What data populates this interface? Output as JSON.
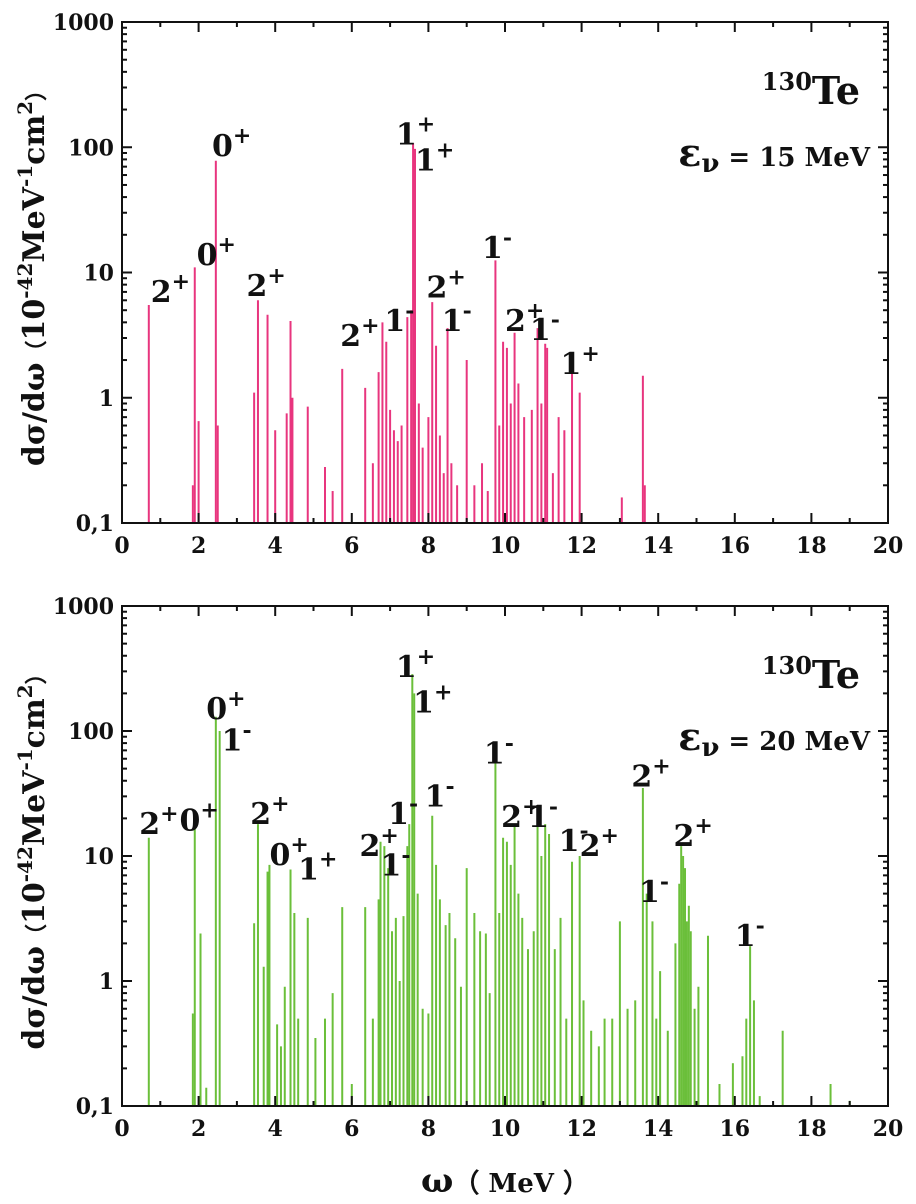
{
  "chart_data": [
    {
      "type": "bar",
      "nucleus": {
        "mass": "130",
        "symbol": "Te"
      },
      "energy": {
        "symbol": "ε",
        "sub": "ν",
        "text": " = 15 MeV"
      },
      "ylabel": {
        "main": "dσ/dω",
        "open": "（",
        "ten": "10",
        "exp1": "-42",
        "mev": "MeV",
        "exp2": "-1",
        "cm": "cm",
        "exp3": "2",
        "close": "）"
      },
      "xlabel": "",
      "xlim": [
        0,
        20
      ],
      "ylim": [
        0.1,
        1000
      ],
      "yscale": "log",
      "color": "#e8357e",
      "x_ticks": [
        "0",
        "2",
        "4",
        "6",
        "8",
        "10",
        "12",
        "14",
        "16",
        "18",
        "20"
      ],
      "y_ticks": [
        "0,1",
        "1",
        "10",
        "100",
        "1000"
      ],
      "lines": [
        {
          "x": 0.7,
          "y": 5.5
        },
        {
          "x": 1.85,
          "y": 0.2
        },
        {
          "x": 1.9,
          "y": 11
        },
        {
          "x": 2.0,
          "y": 0.65
        },
        {
          "x": 2.45,
          "y": 78
        },
        {
          "x": 2.5,
          "y": 0.6
        },
        {
          "x": 3.45,
          "y": 1.1
        },
        {
          "x": 3.55,
          "y": 6
        },
        {
          "x": 3.8,
          "y": 4.6
        },
        {
          "x": 4.0,
          "y": 0.55
        },
        {
          "x": 4.3,
          "y": 0.75
        },
        {
          "x": 4.4,
          "y": 4.1
        },
        {
          "x": 4.45,
          "y": 1.0
        },
        {
          "x": 4.85,
          "y": 0.85
        },
        {
          "x": 5.3,
          "y": 0.28
        },
        {
          "x": 5.5,
          "y": 0.18
        },
        {
          "x": 5.75,
          "y": 1.7
        },
        {
          "x": 6.35,
          "y": 1.2
        },
        {
          "x": 6.55,
          "y": 0.3
        },
        {
          "x": 6.7,
          "y": 1.6
        },
        {
          "x": 6.8,
          "y": 4.0
        },
        {
          "x": 6.9,
          "y": 2.8
        },
        {
          "x": 7.0,
          "y": 0.8
        },
        {
          "x": 7.1,
          "y": 0.55
        },
        {
          "x": 7.2,
          "y": 0.45
        },
        {
          "x": 7.3,
          "y": 0.6
        },
        {
          "x": 7.45,
          "y": 4.4
        },
        {
          "x": 7.55,
          "y": 5.0
        },
        {
          "x": 7.6,
          "y": 108
        },
        {
          "x": 7.65,
          "y": 97
        },
        {
          "x": 7.75,
          "y": 0.9
        },
        {
          "x": 7.85,
          "y": 0.4
        },
        {
          "x": 8.0,
          "y": 0.7
        },
        {
          "x": 8.1,
          "y": 5.8
        },
        {
          "x": 8.2,
          "y": 2.6
        },
        {
          "x": 8.3,
          "y": 0.5
        },
        {
          "x": 8.4,
          "y": 0.25
        },
        {
          "x": 8.5,
          "y": 3.6
        },
        {
          "x": 8.6,
          "y": 0.3
        },
        {
          "x": 8.75,
          "y": 0.2
        },
        {
          "x": 9.0,
          "y": 2.0
        },
        {
          "x": 9.2,
          "y": 0.2
        },
        {
          "x": 9.4,
          "y": 0.3
        },
        {
          "x": 9.55,
          "y": 0.18
        },
        {
          "x": 9.75,
          "y": 12.5
        },
        {
          "x": 9.85,
          "y": 0.6
        },
        {
          "x": 9.95,
          "y": 2.8
        },
        {
          "x": 10.05,
          "y": 2.5
        },
        {
          "x": 10.15,
          "y": 0.9
        },
        {
          "x": 10.25,
          "y": 3.3
        },
        {
          "x": 10.35,
          "y": 1.3
        },
        {
          "x": 10.5,
          "y": 0.7
        },
        {
          "x": 10.7,
          "y": 0.8
        },
        {
          "x": 10.85,
          "y": 3.6
        },
        {
          "x": 10.95,
          "y": 0.9
        },
        {
          "x": 11.05,
          "y": 2.7
        },
        {
          "x": 11.1,
          "y": 2.5
        },
        {
          "x": 11.25,
          "y": 0.25
        },
        {
          "x": 11.4,
          "y": 0.7
        },
        {
          "x": 11.55,
          "y": 0.55
        },
        {
          "x": 11.75,
          "y": 1.7
        },
        {
          "x": 11.95,
          "y": 1.1
        },
        {
          "x": 13.05,
          "y": 0.16
        },
        {
          "x": 13.6,
          "y": 1.5
        },
        {
          "x": 13.65,
          "y": 0.2
        }
      ],
      "labels": [
        {
          "x": 0.75,
          "y": 5.8,
          "state": "2",
          "parity": "+"
        },
        {
          "x": 1.95,
          "y": 11.5,
          "state": "0",
          "parity": "+"
        },
        {
          "x": 2.35,
          "y": 85,
          "state": "0",
          "parity": "+"
        },
        {
          "x": 3.25,
          "y": 6.5,
          "state": "2",
          "parity": "+"
        },
        {
          "x": 7.15,
          "y": 105,
          "state": "1",
          "parity": "+"
        },
        {
          "x": 7.65,
          "y": 65,
          "state": "1",
          "parity": "+"
        },
        {
          "x": 5.7,
          "y": 2.6,
          "state": "2",
          "parity": "+"
        },
        {
          "x": 6.85,
          "y": 3.4,
          "state": "1",
          "parity": "-"
        },
        {
          "x": 7.95,
          "y": 6.3,
          "state": "2",
          "parity": "+"
        },
        {
          "x": 8.35,
          "y": 3.4,
          "state": "1",
          "parity": "-"
        },
        {
          "x": 9.4,
          "y": 13,
          "state": "1",
          "parity": "-"
        },
        {
          "x": 10.0,
          "y": 3.4,
          "state": "2",
          "parity": "+"
        },
        {
          "x": 10.65,
          "y": 2.9,
          "state": "1",
          "parity": "-"
        },
        {
          "x": 11.45,
          "y": 1.55,
          "state": "1",
          "parity": "+"
        }
      ]
    },
    {
      "type": "bar",
      "nucleus": {
        "mass": "130",
        "symbol": "Te"
      },
      "energy": {
        "symbol": "ε",
        "sub": "ν",
        "text": " = 20 MeV"
      },
      "ylabel": {
        "main": "dσ/dω",
        "open": "（",
        "ten": "10",
        "exp1": "-42",
        "mev": "MeV",
        "exp2": "-1",
        "cm": "cm",
        "exp3": "2",
        "close": "）"
      },
      "xlabel": {
        "main": "ω",
        "unit": "（ MeV ）"
      },
      "xlim": [
        0,
        20
      ],
      "ylim": [
        0.1,
        1000
      ],
      "yscale": "log",
      "color": "#6bbf3a",
      "x_ticks": [
        "0",
        "2",
        "4",
        "6",
        "8",
        "10",
        "12",
        "14",
        "16",
        "18",
        "20"
      ],
      "y_ticks": [
        "0,1",
        "1",
        "10",
        "100",
        "1000"
      ],
      "lines": [
        {
          "x": 0.7,
          "y": 14
        },
        {
          "x": 1.85,
          "y": 0.55
        },
        {
          "x": 1.9,
          "y": 18
        },
        {
          "x": 2.05,
          "y": 2.4
        },
        {
          "x": 2.2,
          "y": 0.14
        },
        {
          "x": 2.45,
          "y": 130
        },
        {
          "x": 2.55,
          "y": 100
        },
        {
          "x": 3.45,
          "y": 2.9
        },
        {
          "x": 3.55,
          "y": 18
        },
        {
          "x": 3.7,
          "y": 1.3
        },
        {
          "x": 3.8,
          "y": 7.5
        },
        {
          "x": 3.85,
          "y": 8.5
        },
        {
          "x": 4.05,
          "y": 0.45
        },
        {
          "x": 4.15,
          "y": 0.3
        },
        {
          "x": 4.25,
          "y": 0.9
        },
        {
          "x": 4.4,
          "y": 7.8
        },
        {
          "x": 4.5,
          "y": 3.5
        },
        {
          "x": 4.6,
          "y": 0.5
        },
        {
          "x": 4.85,
          "y": 3.2
        },
        {
          "x": 5.05,
          "y": 0.35
        },
        {
          "x": 5.3,
          "y": 0.5
        },
        {
          "x": 5.5,
          "y": 0.8
        },
        {
          "x": 5.75,
          "y": 3.9
        },
        {
          "x": 6.0,
          "y": 0.15
        },
        {
          "x": 6.35,
          "y": 3.9
        },
        {
          "x": 6.55,
          "y": 0.5
        },
        {
          "x": 6.7,
          "y": 4.5
        },
        {
          "x": 6.75,
          "y": 13
        },
        {
          "x": 6.85,
          "y": 12
        },
        {
          "x": 6.95,
          "y": 8
        },
        {
          "x": 7.05,
          "y": 2.5
        },
        {
          "x": 7.15,
          "y": 3.2
        },
        {
          "x": 7.25,
          "y": 1.0
        },
        {
          "x": 7.35,
          "y": 3.3
        },
        {
          "x": 7.45,
          "y": 12
        },
        {
          "x": 7.5,
          "y": 18
        },
        {
          "x": 7.58,
          "y": 285
        },
        {
          "x": 7.63,
          "y": 200
        },
        {
          "x": 7.72,
          "y": 5
        },
        {
          "x": 7.85,
          "y": 0.6
        },
        {
          "x": 8.0,
          "y": 0.55
        },
        {
          "x": 8.1,
          "y": 21
        },
        {
          "x": 8.2,
          "y": 8.5
        },
        {
          "x": 8.3,
          "y": 4.5
        },
        {
          "x": 8.45,
          "y": 2.8
        },
        {
          "x": 8.55,
          "y": 3.5
        },
        {
          "x": 8.7,
          "y": 2.2
        },
        {
          "x": 8.85,
          "y": 0.9
        },
        {
          "x": 9.0,
          "y": 8
        },
        {
          "x": 9.2,
          "y": 3.5
        },
        {
          "x": 9.35,
          "y": 2.5
        },
        {
          "x": 9.5,
          "y": 2.4
        },
        {
          "x": 9.6,
          "y": 0.8
        },
        {
          "x": 9.75,
          "y": 55
        },
        {
          "x": 9.85,
          "y": 3.5
        },
        {
          "x": 9.95,
          "y": 14
        },
        {
          "x": 10.05,
          "y": 13
        },
        {
          "x": 10.15,
          "y": 8.5
        },
        {
          "x": 10.25,
          "y": 18
        },
        {
          "x": 10.35,
          "y": 5
        },
        {
          "x": 10.45,
          "y": 3.2
        },
        {
          "x": 10.6,
          "y": 1.8
        },
        {
          "x": 10.75,
          "y": 2.5
        },
        {
          "x": 10.85,
          "y": 19
        },
        {
          "x": 10.95,
          "y": 10
        },
        {
          "x": 11.05,
          "y": 18
        },
        {
          "x": 11.15,
          "y": 15
        },
        {
          "x": 11.3,
          "y": 1.8
        },
        {
          "x": 11.45,
          "y": 3.2
        },
        {
          "x": 11.6,
          "y": 0.5
        },
        {
          "x": 11.75,
          "y": 9
        },
        {
          "x": 11.95,
          "y": 10
        },
        {
          "x": 12.05,
          "y": 0.7
        },
        {
          "x": 12.25,
          "y": 0.4
        },
        {
          "x": 12.45,
          "y": 0.3
        },
        {
          "x": 12.6,
          "y": 0.5
        },
        {
          "x": 12.8,
          "y": 0.5
        },
        {
          "x": 13.0,
          "y": 3.0
        },
        {
          "x": 13.2,
          "y": 0.6
        },
        {
          "x": 13.4,
          "y": 0.7
        },
        {
          "x": 13.6,
          "y": 35
        },
        {
          "x": 13.7,
          "y": 5
        },
        {
          "x": 13.85,
          "y": 3.0
        },
        {
          "x": 13.95,
          "y": 0.5
        },
        {
          "x": 14.05,
          "y": 1.2
        },
        {
          "x": 14.25,
          "y": 0.4
        },
        {
          "x": 14.45,
          "y": 2.0
        },
        {
          "x": 14.55,
          "y": 6
        },
        {
          "x": 14.6,
          "y": 12
        },
        {
          "x": 14.65,
          "y": 10
        },
        {
          "x": 14.7,
          "y": 8
        },
        {
          "x": 14.75,
          "y": 3
        },
        {
          "x": 14.8,
          "y": 4
        },
        {
          "x": 14.85,
          "y": 2.5
        },
        {
          "x": 14.95,
          "y": 0.6
        },
        {
          "x": 15.05,
          "y": 0.9
        },
        {
          "x": 15.3,
          "y": 2.3
        },
        {
          "x": 15.6,
          "y": 0.15
        },
        {
          "x": 15.95,
          "y": 0.22
        },
        {
          "x": 16.2,
          "y": 0.25
        },
        {
          "x": 16.3,
          "y": 0.5
        },
        {
          "x": 16.4,
          "y": 1.9
        },
        {
          "x": 16.5,
          "y": 0.7
        },
        {
          "x": 16.65,
          "y": 0.12
        },
        {
          "x": 17.25,
          "y": 0.4
        },
        {
          "x": 18.5,
          "y": 0.15
        },
        {
          "x": 19.0,
          "y": 0.11
        }
      ],
      "labels": [
        {
          "x": 0.45,
          "y": 15,
          "state": "2",
          "parity": "+"
        },
        {
          "x": 1.5,
          "y": 16,
          "state": "0",
          "parity": "+"
        },
        {
          "x": 2.2,
          "y": 125,
          "state": "0",
          "parity": "+"
        },
        {
          "x": 2.6,
          "y": 70,
          "state": "1",
          "parity": "-"
        },
        {
          "x": 3.35,
          "y": 18,
          "state": "2",
          "parity": "+"
        },
        {
          "x": 3.85,
          "y": 8.5,
          "state": "0",
          "parity": "+"
        },
        {
          "x": 4.6,
          "y": 6.5,
          "state": "1",
          "parity": "+"
        },
        {
          "x": 7.15,
          "y": 270,
          "state": "1",
          "parity": "+"
        },
        {
          "x": 7.6,
          "y": 140,
          "state": "1",
          "parity": "+"
        },
        {
          "x": 6.95,
          "y": 18,
          "state": "1",
          "parity": "-"
        },
        {
          "x": 6.2,
          "y": 10,
          "state": "2",
          "parity": "+"
        },
        {
          "x": 6.75,
          "y": 7,
          "state": "1",
          "parity": "-"
        },
        {
          "x": 7.9,
          "y": 25,
          "state": "1",
          "parity": "-"
        },
        {
          "x": 9.45,
          "y": 55,
          "state": "1",
          "parity": "-"
        },
        {
          "x": 9.9,
          "y": 17,
          "state": "2",
          "parity": "+"
        },
        {
          "x": 10.6,
          "y": 17,
          "state": "1",
          "parity": "-"
        },
        {
          "x": 11.4,
          "y": 11,
          "state": "1",
          "parity": "-"
        },
        {
          "x": 11.95,
          "y": 10,
          "state": "2",
          "parity": "+"
        },
        {
          "x": 13.3,
          "y": 36,
          "state": "2",
          "parity": "+"
        },
        {
          "x": 13.5,
          "y": 4.3,
          "state": "1",
          "parity": "-"
        },
        {
          "x": 14.4,
          "y": 12,
          "state": "2",
          "parity": "+"
        },
        {
          "x": 16.0,
          "y": 1.9,
          "state": "1",
          "parity": "-"
        }
      ]
    }
  ]
}
